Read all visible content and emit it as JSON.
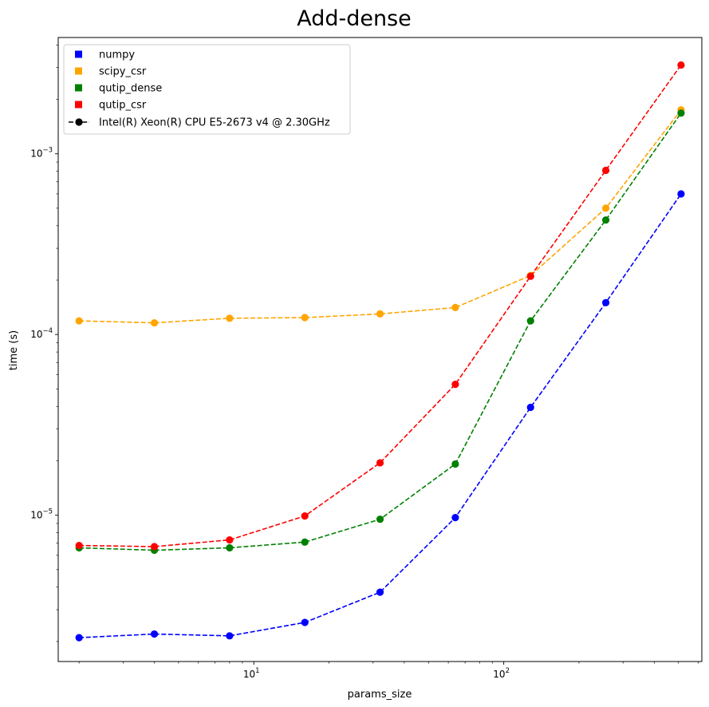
{
  "chart_data": {
    "type": "line",
    "title": "Add-dense",
    "xlabel": "params_size",
    "ylabel": "time (s)",
    "xscale": "log",
    "yscale": "log",
    "xlim": [
      1.65,
      620
    ],
    "ylim": [
      1.55e-06,
      0.0044
    ],
    "x_major_ticks": [
      {
        "value": 10,
        "base": "10",
        "exp": "1"
      },
      {
        "value": 100,
        "base": "10",
        "exp": "2"
      }
    ],
    "y_major_ticks": [
      {
        "value": 1e-05,
        "base": "10",
        "exp": "−5"
      },
      {
        "value": 0.0001,
        "base": "10",
        "exp": "−4"
      },
      {
        "value": 0.001,
        "base": "10",
        "exp": "−3"
      }
    ],
    "grid": false,
    "legend_position": "top-left",
    "legend_note": "Intel(R) Xeon(R) CPU E5-2673 v4 @ 2.30GHz",
    "x": [
      2,
      4,
      8,
      16,
      32,
      64,
      128,
      256,
      512
    ],
    "series": [
      {
        "name": "numpy",
        "color": "#0000ff",
        "values": [
          2.1e-06,
          2.2e-06,
          2.15e-06,
          2.55e-06,
          3.75e-06,
          9.7e-06,
          3.95e-05,
          0.00015,
          0.0006
        ]
      },
      {
        "name": "scipy_csr",
        "color": "#ffa500",
        "values": [
          0.000119,
          0.000116,
          0.000123,
          0.000124,
          0.00013,
          0.000141,
          0.000212,
          0.0005,
          0.00175
        ]
      },
      {
        "name": "qutip_dense",
        "color": "#008000",
        "values": [
          6.6e-06,
          6.4e-06,
          6.6e-06,
          7.1e-06,
          9.5e-06,
          1.92e-05,
          0.000119,
          0.00043,
          0.00168
        ]
      },
      {
        "name": "qutip_csr",
        "color": "#ff0000",
        "values": [
          6.8e-06,
          6.7e-06,
          7.3e-06,
          9.9e-06,
          1.95e-05,
          5.3e-05,
          0.00021,
          0.00081,
          0.0031
        ]
      }
    ]
  }
}
